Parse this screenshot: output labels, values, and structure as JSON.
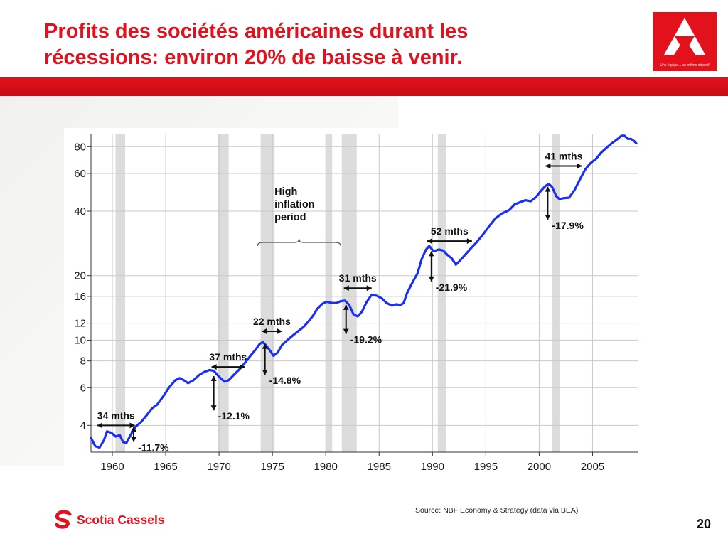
{
  "slide": {
    "title_lines": [
      "Profits des sociétés américaines durant les",
      "récessions: environ 20% de baisse à venir."
    ],
    "logo_tagline": "Une équipe... un même objectif",
    "brand_name": "Scotia Cassels",
    "page_number": "20",
    "colors": {
      "title_red": "#e0121e",
      "band_red": "#d30f19",
      "line_blue": "#1a2ff0",
      "recession_gray": "#dcdcdc"
    }
  },
  "icons": {
    "logo": "triangle-logo-icon",
    "brand": "scotia-s-icon"
  },
  "chart_data": {
    "type": "line",
    "title": "",
    "xlabel": "",
    "ylabel": "",
    "y_scale": "log",
    "xlim": [
      1958,
      2009.3
    ],
    "ylim": [
      3,
      92
    ],
    "grid": true,
    "y_ticks": [
      4,
      6,
      8,
      10,
      12,
      16,
      20,
      40,
      60,
      80
    ],
    "x_ticks": [
      1960,
      1965,
      1970,
      1975,
      1980,
      1985,
      1990,
      1995,
      2000,
      2005
    ],
    "recessions": [
      [
        1960.3,
        1961.2
      ],
      [
        1969.9,
        1970.9
      ],
      [
        1973.9,
        1975.2
      ],
      [
        1980.0,
        1980.6
      ],
      [
        1981.5,
        1982.9
      ],
      [
        1990.5,
        1991.3
      ],
      [
        2001.2,
        2001.9
      ]
    ],
    "series": [
      {
        "values": [
          [
            1958.0,
            3.5
          ],
          [
            1958.4,
            3.2
          ],
          [
            1958.8,
            3.15
          ],
          [
            1959.2,
            3.4
          ],
          [
            1959.5,
            3.75
          ],
          [
            1959.9,
            3.7
          ],
          [
            1960.3,
            3.55
          ],
          [
            1960.7,
            3.6
          ],
          [
            1961.0,
            3.35
          ],
          [
            1961.3,
            3.3
          ],
          [
            1961.7,
            3.6
          ],
          [
            1962.2,
            3.95
          ],
          [
            1962.7,
            4.15
          ],
          [
            1963.2,
            4.45
          ],
          [
            1963.7,
            4.8
          ],
          [
            1964.2,
            5.0
          ],
          [
            1964.8,
            5.5
          ],
          [
            1965.3,
            6.0
          ],
          [
            1965.9,
            6.5
          ],
          [
            1966.3,
            6.65
          ],
          [
            1966.7,
            6.5
          ],
          [
            1967.1,
            6.3
          ],
          [
            1967.6,
            6.5
          ],
          [
            1968.1,
            6.85
          ],
          [
            1968.6,
            7.1
          ],
          [
            1969.1,
            7.25
          ],
          [
            1969.5,
            7.2
          ],
          [
            1970.0,
            6.75
          ],
          [
            1970.5,
            6.4
          ],
          [
            1970.9,
            6.5
          ],
          [
            1971.4,
            6.9
          ],
          [
            1971.9,
            7.3
          ],
          [
            1972.4,
            7.8
          ],
          [
            1972.9,
            8.4
          ],
          [
            1973.4,
            9.0
          ],
          [
            1973.8,
            9.6
          ],
          [
            1974.1,
            9.8
          ],
          [
            1974.4,
            9.45
          ],
          [
            1974.8,
            8.9
          ],
          [
            1975.1,
            8.45
          ],
          [
            1975.5,
            8.75
          ],
          [
            1975.9,
            9.5
          ],
          [
            1976.4,
            10.0
          ],
          [
            1976.9,
            10.5
          ],
          [
            1977.4,
            11.0
          ],
          [
            1977.9,
            11.5
          ],
          [
            1978.3,
            12.1
          ],
          [
            1978.8,
            13.0
          ],
          [
            1979.2,
            14.0
          ],
          [
            1979.7,
            14.8
          ],
          [
            1980.1,
            15.1
          ],
          [
            1980.6,
            14.9
          ],
          [
            1981.0,
            14.9
          ],
          [
            1981.4,
            15.2
          ],
          [
            1981.8,
            15.3
          ],
          [
            1982.2,
            14.6
          ],
          [
            1982.6,
            13.2
          ],
          [
            1983.0,
            12.9
          ],
          [
            1983.4,
            13.6
          ],
          [
            1983.8,
            15.0
          ],
          [
            1984.3,
            16.3
          ],
          [
            1984.8,
            16.1
          ],
          [
            1985.3,
            15.6
          ],
          [
            1985.7,
            14.9
          ],
          [
            1986.2,
            14.5
          ],
          [
            1986.6,
            14.7
          ],
          [
            1987.0,
            14.6
          ],
          [
            1987.3,
            14.9
          ],
          [
            1987.6,
            16.5
          ],
          [
            1988.1,
            18.5
          ],
          [
            1988.6,
            20.5
          ],
          [
            1989.0,
            24.0
          ],
          [
            1989.4,
            26.5
          ],
          [
            1989.7,
            27.5
          ],
          [
            1990.1,
            26.0
          ],
          [
            1990.6,
            26.5
          ],
          [
            1991.0,
            26.2
          ],
          [
            1991.4,
            25.0
          ],
          [
            1991.8,
            24.1
          ],
          [
            1992.2,
            22.5
          ],
          [
            1992.5,
            23.3
          ],
          [
            1992.9,
            24.5
          ],
          [
            1993.5,
            26.5
          ],
          [
            1994.1,
            28.5
          ],
          [
            1994.7,
            31.0
          ],
          [
            1995.3,
            34.0
          ],
          [
            1995.9,
            37.0
          ],
          [
            1996.5,
            39.0
          ],
          [
            1997.2,
            40.5
          ],
          [
            1997.7,
            43.0
          ],
          [
            1998.2,
            44.0
          ],
          [
            1998.7,
            45.0
          ],
          [
            1999.2,
            44.5
          ],
          [
            1999.7,
            46.5
          ],
          [
            2000.2,
            50.0
          ],
          [
            2000.6,
            52.5
          ],
          [
            2000.9,
            53.5
          ],
          [
            2001.2,
            52.0
          ],
          [
            2001.6,
            47.0
          ],
          [
            2001.9,
            45.5
          ],
          [
            2002.3,
            46.0
          ],
          [
            2002.8,
            46.2
          ],
          [
            2003.3,
            50.0
          ],
          [
            2003.8,
            56.0
          ],
          [
            2004.3,
            62.5
          ],
          [
            2004.8,
            67.0
          ],
          [
            2005.3,
            70.0
          ],
          [
            2005.8,
            75.0
          ],
          [
            2006.3,
            79.0
          ],
          [
            2006.8,
            83.0
          ],
          [
            2007.3,
            86.5
          ],
          [
            2007.7,
            90.0
          ],
          [
            2008.0,
            90.0
          ],
          [
            2008.3,
            87.0
          ],
          [
            2008.6,
            87.0
          ],
          [
            2008.9,
            85.0
          ],
          [
            2009.1,
            83.0
          ]
        ]
      }
    ],
    "annotations": {
      "durations": [
        {
          "label": "34 mths",
          "x1": 1958.6,
          "x2": 1962.1,
          "y": 4.0
        },
        {
          "label": "37 mths",
          "x1": 1969.3,
          "x2": 1972.4,
          "y": 7.5
        },
        {
          "label": "22 mths",
          "x1": 1974.0,
          "x2": 1975.9,
          "y": 11.0
        },
        {
          "label": "31 mths",
          "x1": 1981.7,
          "x2": 1984.3,
          "y": 17.5
        },
        {
          "label": "52 mths",
          "x1": 1989.5,
          "x2": 1993.7,
          "y": 29.0
        },
        {
          "label": "41 mths",
          "x1": 2000.6,
          "x2": 2004.0,
          "y": 65.0
        }
      ],
      "declines": [
        {
          "label": "-11.7%",
          "x": 1962.0,
          "y_top": 3.95,
          "y_bottom": 3.35
        },
        {
          "label": "-12.1%",
          "x": 1969.5,
          "y_top": 6.8,
          "y_bottom": 4.7
        },
        {
          "label": "-14.8%",
          "x": 1974.3,
          "y_top": 9.6,
          "y_bottom": 6.9
        },
        {
          "label": "-19.2%",
          "x": 1981.9,
          "y_top": 14.6,
          "y_bottom": 10.7
        },
        {
          "label": "-21.9%",
          "x": 1989.9,
          "y_top": 26.0,
          "y_bottom": 18.8
        },
        {
          "label": "-17.9%",
          "x": 2000.8,
          "y_top": 52.0,
          "y_bottom": 36.5
        }
      ],
      "period": {
        "label_lines": [
          "High",
          "inflation",
          "period"
        ],
        "x1": 1973.6,
        "x2": 1981.4
      }
    },
    "source": "Source: NBF Economy & Strategy (data via BEA)"
  }
}
